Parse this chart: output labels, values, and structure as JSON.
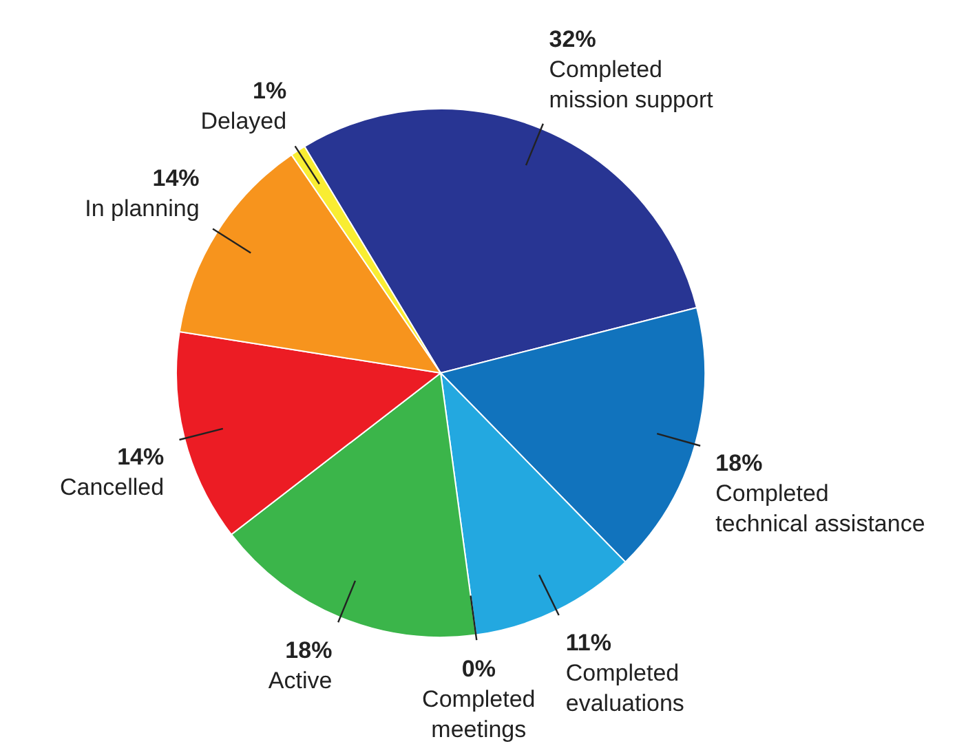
{
  "chart_data": {
    "type": "pie",
    "categories": [
      "Completed mission support",
      "Completed technical assistance",
      "Completed evaluations",
      "Completed meetings",
      "Active",
      "Cancelled",
      "In planning",
      "Delayed"
    ],
    "values": [
      32,
      18,
      11,
      0,
      18,
      14,
      14,
      1
    ],
    "value_labels": [
      "32%",
      "18%",
      "11%",
      "0%",
      "18%",
      "14%",
      "14%",
      "1%"
    ],
    "colors": [
      "#283593",
      "#1173bd",
      "#23a8e0",
      "#1a9fd8",
      "#3bb54a",
      "#ec1c24",
      "#f7941d",
      "#f9ed32"
    ],
    "legend": false
  }
}
